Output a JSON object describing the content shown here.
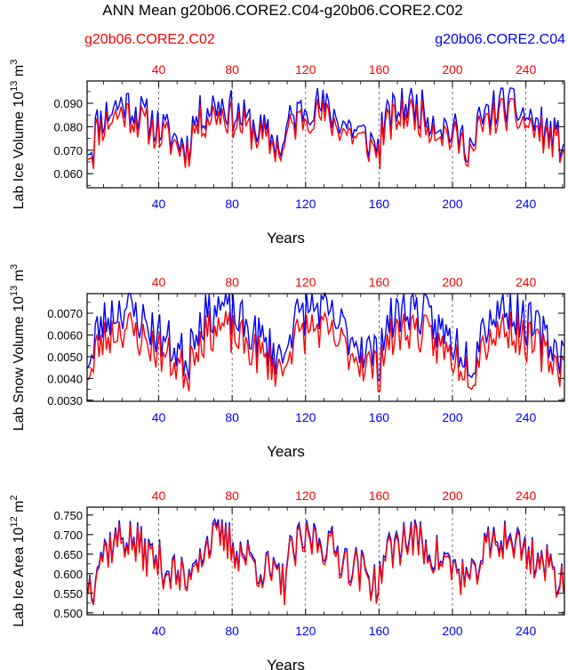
{
  "title": "ANN Mean g20b06.CORE2.C04-g20b06.CORE2.C02",
  "legend": {
    "left_label": "g20b06.CORE2.C02",
    "right_label": "g20b06.CORE2.C04",
    "left_color": "#ff0000",
    "right_color": "#0000ff"
  },
  "chart_data": [
    {
      "type": "line",
      "ylabel_main": "Lab Ice Volume 10",
      "ylabel_exp": "13",
      "ylabel_unit": " m",
      "ylabel_unit_exp": "3",
      "xlabel": "Years",
      "xlim": [
        1,
        261
      ],
      "ylim": [
        0.054,
        0.0995
      ],
      "yticks": [
        "0.060",
        "0.070",
        "0.080",
        "0.090"
      ],
      "ytick_values": [
        0.06,
        0.07,
        0.08,
        0.09
      ],
      "xticks": [
        "40",
        "80",
        "120",
        "160",
        "200",
        "240"
      ],
      "xtick_values": [
        40,
        80,
        120,
        160,
        200,
        240
      ],
      "series": [
        {
          "name": "g20b06.CORE2.C04",
          "color": "#0000ff",
          "base": 0.062,
          "spread": 0.032,
          "seed": 11,
          "offset": 0.0025
        },
        {
          "name": "g20b06.CORE2.C02",
          "color": "#ff0000",
          "base": 0.062,
          "spread": 0.03,
          "seed": 11,
          "offset": 0.0
        }
      ]
    },
    {
      "type": "line",
      "ylabel_main": "Lab Snow Volume 10",
      "ylabel_exp": "13",
      "ylabel_unit": " m",
      "ylabel_unit_exp": "3",
      "xlabel": "Years",
      "xlim": [
        1,
        261
      ],
      "ylim": [
        0.00295,
        0.0079
      ],
      "yticks": [
        "0.0030",
        "0.0040",
        "0.0050",
        "0.0060",
        "0.0070"
      ],
      "ytick_values": [
        0.003,
        0.004,
        0.005,
        0.006,
        0.007
      ],
      "xticks": [
        "40",
        "80",
        "120",
        "160",
        "200",
        "240"
      ],
      "xtick_values": [
        40,
        80,
        120,
        160,
        200,
        240
      ],
      "series": [
        {
          "name": "g20b06.CORE2.C04",
          "color": "#0000ff",
          "base": 0.0036,
          "spread": 0.004,
          "seed": 23,
          "offset": 0.0005
        },
        {
          "name": "g20b06.CORE2.C02",
          "color": "#ff0000",
          "base": 0.0034,
          "spread": 0.0037,
          "seed": 23,
          "offset": 0.0
        }
      ]
    },
    {
      "type": "line",
      "ylabel_main": "Lab Ice Area 10",
      "ylabel_exp": "12",
      "ylabel_unit": " m",
      "ylabel_unit_exp": "2",
      "xlabel": "Years",
      "xlim": [
        1,
        261
      ],
      "ylim": [
        0.495,
        0.77
      ],
      "yticks": [
        "0.500",
        "0.550",
        "0.600",
        "0.650",
        "0.700",
        "0.750"
      ],
      "ytick_values": [
        0.5,
        0.55,
        0.6,
        0.65,
        0.7,
        0.75
      ],
      "xticks": [
        "40",
        "80",
        "120",
        "160",
        "200",
        "240"
      ],
      "xtick_values": [
        40,
        80,
        120,
        160,
        200,
        240
      ],
      "series": [
        {
          "name": "g20b06.CORE2.C04",
          "color": "#0000ff",
          "base": 0.52,
          "spread": 0.21,
          "seed": 37,
          "offset": 0.009
        },
        {
          "name": "g20b06.CORE2.C02",
          "color": "#ff0000",
          "base": 0.52,
          "spread": 0.21,
          "seed": 37,
          "offset": 0.0
        }
      ]
    }
  ]
}
